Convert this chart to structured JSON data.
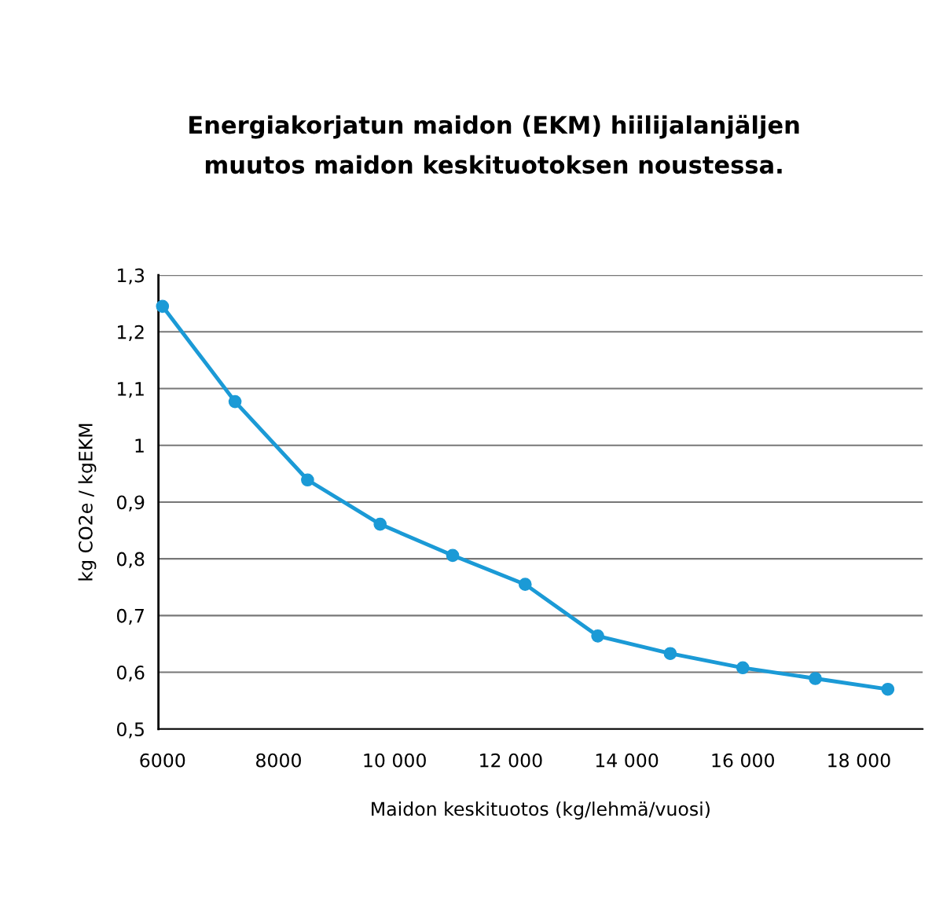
{
  "chart_data": {
    "type": "line",
    "title": "Energiakorjatun maidon (EKM) hiilijalanjäljen\nmuutos maidon keskituotoksen noustessa.",
    "xlabel": "Maidon keskituotos (kg/lehmä/vuosi)",
    "ylabel": "kg CO2e / kgEKM",
    "x": [
      6000,
      7250,
      8500,
      9750,
      11000,
      12250,
      13500,
      14750,
      16000,
      17250,
      18500
    ],
    "series": [
      {
        "color": "#1b9ad6",
        "values": [
          1.245,
          1.077,
          0.939,
          0.861,
          0.806,
          0.755,
          0.664,
          0.633,
          0.608,
          0.589,
          0.57
        ]
      }
    ],
    "xlim": [
      5930,
      19100
    ],
    "xticks": [
      6000,
      8000,
      {
        "value": 10000,
        "label": "10 000"
      },
      {
        "value": 12000,
        "label": "12 000"
      },
      {
        "value": 14000,
        "label": "14 000"
      },
      {
        "value": 16000,
        "label": "16 000"
      },
      {
        "value": 18000,
        "label": "18 000"
      }
    ],
    "ylim": [
      0.5,
      1.3
    ],
    "yticks": [
      {
        "value": 0.5,
        "label": "0,5"
      },
      {
        "value": 0.6,
        "label": "0,6"
      },
      {
        "value": 0.7,
        "label": "0,7"
      },
      {
        "value": 0.8,
        "label": "0,8"
      },
      {
        "value": 0.9,
        "label": "0,9"
      },
      1,
      {
        "value": 1.1,
        "label": "1,1"
      },
      {
        "value": 1.2,
        "label": "1,2"
      },
      {
        "value": 1.3,
        "label": "1,3"
      }
    ],
    "grid": "y",
    "marker": "circle",
    "line_style": "solid"
  }
}
